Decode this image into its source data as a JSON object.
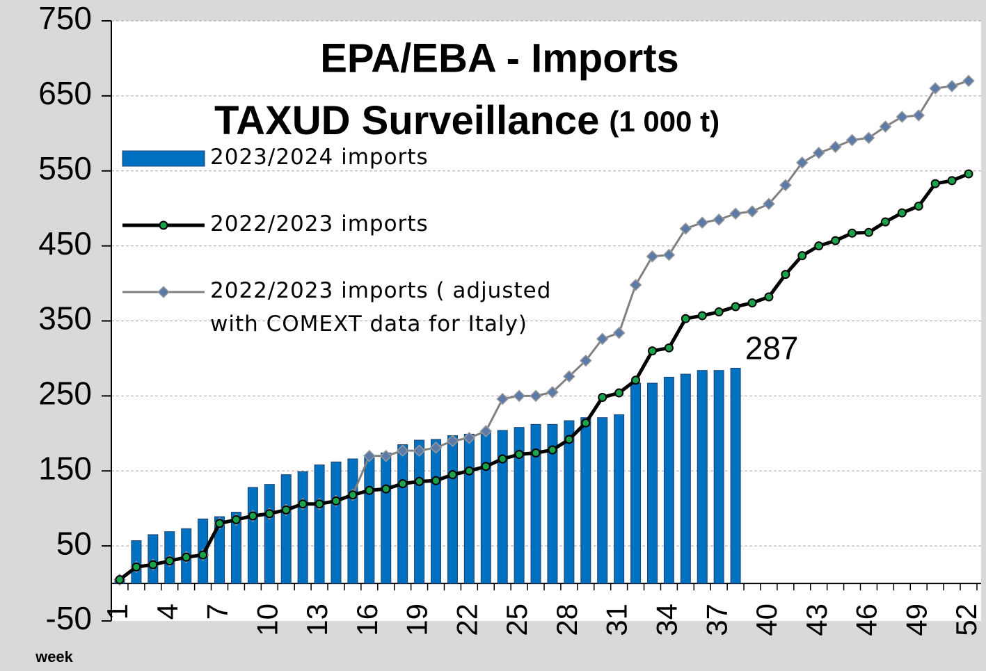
{
  "chart_data": {
    "type": "bar_line",
    "title": "EPA/EBA - Imports",
    "subtitle": "TAXUD Surveillance",
    "unit": "(1 000 t)",
    "xlabel": "week",
    "categories": [
      1,
      null,
      null,
      4,
      null,
      null,
      7,
      null,
      null,
      10,
      null,
      null,
      13,
      null,
      null,
      16,
      null,
      null,
      19,
      null,
      null,
      22,
      null,
      null,
      25,
      null,
      null,
      28,
      null,
      null,
      31,
      null,
      null,
      34,
      null,
      null,
      37,
      null,
      null,
      40,
      null,
      null,
      43,
      null,
      null,
      46,
      null,
      null,
      49,
      null,
      null,
      52
    ],
    "ylim": [
      -50,
      750
    ],
    "yticks": [
      -50,
      50,
      150,
      250,
      350,
      450,
      550,
      650,
      750
    ],
    "grid": true,
    "legend": "top-left",
    "series": [
      {
        "name": "2023/2024 imports",
        "kind": "bar",
        "color": "#0070c0",
        "values": [
          5,
          57,
          65,
          69,
          73,
          86,
          89,
          95,
          128,
          132,
          145,
          149,
          158,
          162,
          166,
          171,
          174,
          185,
          191,
          192,
          197,
          199,
          203,
          204,
          208,
          212,
          212,
          217,
          221,
          221,
          225,
          267,
          267,
          275,
          279,
          284,
          284,
          287,
          null,
          null,
          null,
          null,
          null,
          null,
          null,
          null,
          null,
          null,
          null,
          null,
          null,
          null
        ]
      },
      {
        "name": "2022/2023 imports",
        "kind": "line",
        "color": "#000000",
        "marker_color": "#1aa34a",
        "values": [
          5,
          22,
          25,
          30,
          35,
          38,
          80,
          85,
          90,
          93,
          98,
          106,
          106,
          110,
          118,
          124,
          126,
          133,
          136,
          137,
          145,
          150,
          156,
          166,
          172,
          174,
          178,
          192,
          214,
          248,
          254,
          271,
          310,
          314,
          353,
          357,
          362,
          369,
          374,
          382,
          412,
          437,
          450,
          457,
          467,
          468,
          482,
          494,
          503,
          533,
          537,
          546
        ]
      },
      {
        "name": "2022/2023 imports ( adjusted with COMEXT data for Italy)",
        "kind": "line",
        "color": "#808080",
        "marker_color": "#5b7aa8",
        "values": [
          5,
          22,
          25,
          30,
          35,
          38,
          80,
          85,
          90,
          93,
          98,
          106,
          106,
          110,
          118,
          170,
          170,
          177,
          177,
          181,
          190,
          194,
          203,
          246,
          250,
          250,
          255,
          276,
          297,
          326,
          334,
          398,
          436,
          438,
          473,
          481,
          485,
          493,
          496,
          506,
          531,
          561,
          574,
          582,
          591,
          594,
          609,
          622,
          624,
          660,
          663,
          670
        ]
      }
    ],
    "annotations": [
      {
        "text": "287",
        "series": 0,
        "index": 37
      }
    ]
  }
}
